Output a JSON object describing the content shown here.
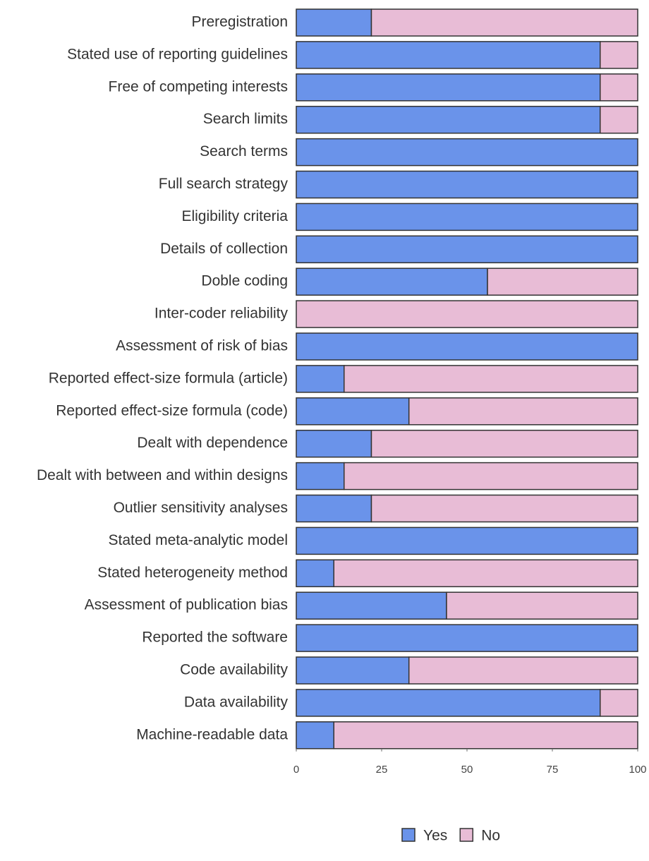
{
  "chart_data": {
    "type": "stacked-bar",
    "orientation": "horizontal",
    "categories": [
      "Preregistration",
      "Stated use of reporting guidelines",
      "Free of competing interests",
      "Search limits",
      "Search terms",
      "Full search strategy",
      "Eligibility criteria",
      "Details of collection",
      "Doble coding",
      "Inter-coder reliability",
      "Assessment of risk of bias",
      "Reported effect-size formula (article)",
      "Reported effect-size formula (code)",
      "Dealt with dependence",
      "Dealt with between and within designs",
      "Outlier sensitivity analyses",
      "Stated meta-analytic model",
      "Stated heterogeneity method",
      "Assessment of publication bias",
      "Reported the software",
      "Code availability",
      "Data availability",
      "Machine-readable data"
    ],
    "series": [
      {
        "name": "Yes",
        "color": "#6a93ea",
        "values": [
          22,
          89,
          89,
          89,
          100,
          100,
          100,
          100,
          56,
          0,
          100,
          14,
          33,
          22,
          14,
          22,
          100,
          11,
          44,
          100,
          33,
          89,
          11
        ]
      },
      {
        "name": "No",
        "color": "#e8bcd6",
        "values": [
          78,
          11,
          11,
          11,
          0,
          0,
          0,
          0,
          44,
          100,
          0,
          86,
          67,
          78,
          86,
          78,
          0,
          89,
          56,
          0,
          67,
          11,
          89
        ]
      }
    ],
    "xlim": [
      0,
      100
    ],
    "xticks": [
      0,
      25,
      50,
      75,
      100
    ],
    "grid": false,
    "legend": "bottom"
  }
}
